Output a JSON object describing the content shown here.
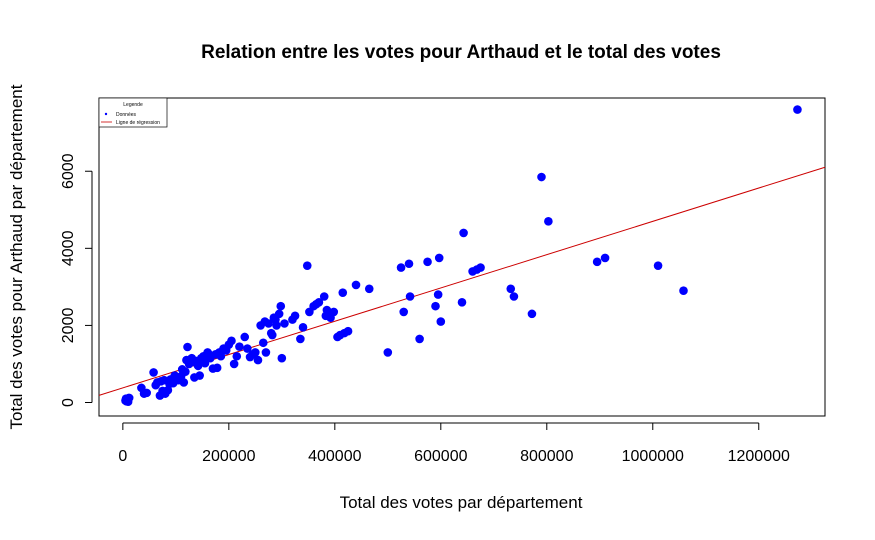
{
  "chart_data": {
    "type": "scatter",
    "title": "Relation entre les votes pour Arthaud et le total des votes",
    "xlabel": "Total des votes par département",
    "ylabel": "Total des votes pour Arthaud par département",
    "xlim": [
      -45000,
      1325000
    ],
    "ylim": [
      -350,
      7900
    ],
    "x_ticks": [
      0,
      200000,
      400000,
      600000,
      800000,
      1000000,
      1200000
    ],
    "x_tick_labels": [
      "0",
      "200000",
      "400000",
      "600000",
      "800000",
      "1000000",
      "1200000"
    ],
    "y_ticks": [
      0,
      2000,
      4000,
      6000
    ],
    "y_tick_labels": [
      "0",
      "2000",
      "4000",
      "6000"
    ],
    "point_color": "#0000ff",
    "line_color": "#cc0000",
    "legend": {
      "title": "Legende",
      "position": "top-left",
      "entries": [
        {
          "label": "Données",
          "kind": "point"
        },
        {
          "label": "Ligne de régression",
          "kind": "line"
        }
      ]
    },
    "regression": {
      "intercept": 380,
      "slope": 0.00432
    },
    "series": [
      {
        "x": [
          5000,
          6000,
          7000,
          8000,
          10000,
          12000,
          35000,
          40000,
          45000,
          58000,
          62000,
          65000,
          70000,
          72000,
          75000,
          78000,
          80000,
          85000,
          88000,
          90000,
          92000,
          95000,
          98000,
          100000,
          105000,
          110000,
          112000,
          115000,
          118000,
          120000,
          122000,
          125000,
          128000,
          130000,
          135000,
          138000,
          140000,
          142000,
          145000,
          148000,
          150000,
          152000,
          155000,
          160000,
          162000,
          165000,
          170000,
          175000,
          178000,
          182000,
          185000,
          190000,
          195000,
          200000,
          205000,
          210000,
          215000,
          220000,
          230000,
          235000,
          240000,
          245000,
          250000,
          255000,
          260000,
          265000,
          268000,
          270000,
          275000,
          280000,
          282000,
          285000,
          288000,
          290000,
          295000,
          298000,
          300000,
          305000,
          320000,
          325000,
          335000,
          340000,
          348000,
          352000,
          360000,
          365000,
          370000,
          380000,
          383000,
          385000,
          388000,
          392000,
          398000,
          405000,
          410000,
          415000,
          418000,
          425000,
          440000,
          465000,
          500000,
          525000,
          530000,
          540000,
          542000,
          560000,
          575000,
          590000,
          595000,
          597000,
          600000,
          640000,
          643000,
          660000,
          668000,
          675000,
          732000,
          738000,
          772000,
          790000,
          803000,
          895000,
          910000,
          1010000,
          1058000,
          1273000
        ],
        "y": [
          50,
          100,
          30,
          80,
          20,
          120,
          380,
          230,
          250,
          780,
          450,
          520,
          180,
          550,
          300,
          580,
          230,
          320,
          480,
          600,
          550,
          500,
          700,
          640,
          580,
          680,
          860,
          520,
          800,
          1100,
          1440,
          1000,
          1050,
          1150,
          650,
          1080,
          1000,
          950,
          700,
          1150,
          1100,
          1200,
          1020,
          1300,
          1250,
          1150,
          880,
          1250,
          900,
          1300,
          1200,
          1400,
          1350,
          1500,
          1600,
          1000,
          1200,
          1450,
          1700,
          1400,
          1180,
          1250,
          1300,
          1100,
          2000,
          1550,
          2100,
          1300,
          2050,
          1800,
          1750,
          2200,
          2150,
          2000,
          2300,
          2500,
          1150,
          2050,
          2150,
          2250,
          1650,
          1950,
          3550,
          2350,
          2500,
          2550,
          2600,
          2750,
          2250,
          2400,
          2300,
          2200,
          2350,
          1700,
          1750,
          2850,
          1800,
          1850,
          3050,
          2950,
          1300,
          3500,
          2350,
          3600,
          2750,
          1650,
          3650,
          2500,
          2800,
          3750,
          2100,
          2600,
          4400,
          3400,
          3450,
          3500,
          2950,
          2750,
          2300,
          5850,
          4700,
          3650,
          3750,
          3550,
          2900,
          7600
        ]
      }
    ]
  }
}
